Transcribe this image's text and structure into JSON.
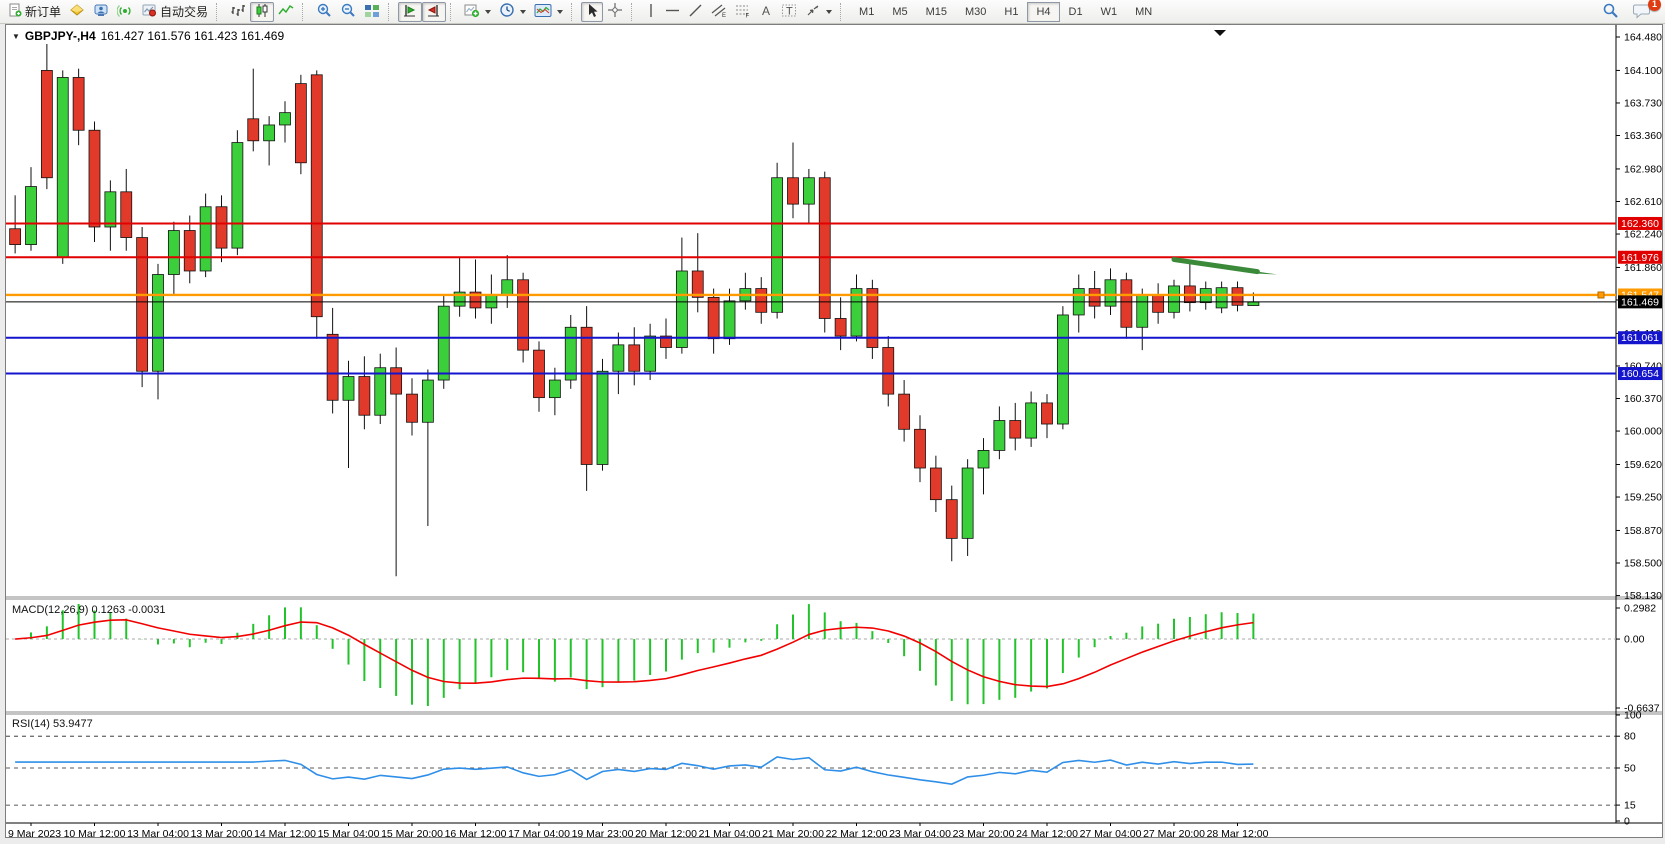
{
  "toolbar": {
    "new_order_label": "新订单",
    "autotrading_label": "自动交易",
    "timeframes": [
      "M1",
      "M5",
      "M15",
      "M30",
      "H1",
      "H4",
      "D1",
      "W1",
      "MN"
    ],
    "active_timeframe": "H4",
    "notification_count": "1"
  },
  "chart": {
    "title_symbol": "GBPJPY-,H4",
    "title_ohlc": "161.427 161.576 161.423 161.469",
    "price_axis_ticks": [
      "164.480",
      "164.100",
      "163.730",
      "163.360",
      "162.980",
      "162.610",
      "162.240",
      "161.860",
      "161.490",
      "161.110",
      "160.740",
      "160.370",
      "160.000",
      "159.620",
      "159.250",
      "158.870",
      "158.500",
      "158.130"
    ],
    "time_axis_labels": [
      "9 Mar 2023",
      "10 Mar 12:00",
      "13 Mar 04:00",
      "13 Mar 20:00",
      "14 Mar 12:00",
      "15 Mar 04:00",
      "15 Mar 20:00",
      "16 Mar 12:00",
      "17 Mar 04:00",
      "19 Mar 23:00",
      "20 Mar 12:00",
      "21 Mar 04:00",
      "21 Mar 20:00",
      "22 Mar 12:00",
      "23 Mar 04:00",
      "23 Mar 20:00",
      "24 Mar 12:00",
      "27 Mar 04:00",
      "27 Mar 20:00",
      "28 Mar 12:00"
    ],
    "level_labels": [
      {
        "text": "162.360",
        "price": 162.36,
        "color": "#e00000",
        "line_width": 2
      },
      {
        "text": "161.976",
        "price": 161.976,
        "color": "#e00000",
        "line_width": 2
      },
      {
        "text": "161.547",
        "price": 161.547,
        "color": "#ff9a00",
        "line_width": 2.4
      },
      {
        "text": "161.469",
        "price": 161.469,
        "color": "#000000",
        "line_width": 1
      },
      {
        "text": "161.061",
        "price": 161.061,
        "color": "#1414cc",
        "line_width": 2
      },
      {
        "text": "160.654",
        "price": 160.654,
        "color": "#1414cc",
        "line_width": 2
      }
    ]
  },
  "macd_panel": {
    "label": "MACD(12,26,9)",
    "values": "0.1263 -0.0031",
    "axis_max": "0.2982",
    "axis_zero": "0.00",
    "axis_min": "-0.6637",
    "histogram_color": "#22c32a",
    "signal_color": "#f20000"
  },
  "rsi_panel": {
    "label": "RSI(14)",
    "value": "53.9477",
    "axis_ticks": [
      "100",
      "80",
      "50",
      "15",
      "0"
    ],
    "levels": [
      80,
      50,
      15
    ],
    "line_color": "#2f8fe8"
  },
  "chart_data": {
    "type": "candlestick",
    "symbol": "GBPJPY-",
    "timeframe": "H4",
    "title": "GBPJPY- H4 candlestick chart with MACD and RSI",
    "ylim": [
      158.13,
      164.48
    ],
    "up_color": "#3ccf3c",
    "down_color": "#e23a2a",
    "candles": [
      [
        162.3,
        162.68,
        162.02,
        162.12
      ],
      [
        162.12,
        163.0,
        162.05,
        162.78
      ],
      [
        164.1,
        164.4,
        162.75,
        162.88
      ],
      [
        161.98,
        164.1,
        161.9,
        164.02
      ],
      [
        164.02,
        164.12,
        163.25,
        163.42
      ],
      [
        163.42,
        163.52,
        162.15,
        162.32
      ],
      [
        162.32,
        162.85,
        162.05,
        162.72
      ],
      [
        162.72,
        162.98,
        162.05,
        162.2
      ],
      [
        162.2,
        162.32,
        160.5,
        160.68
      ],
      [
        160.68,
        161.9,
        160.36,
        161.78
      ],
      [
        161.78,
        162.38,
        161.55,
        162.28
      ],
      [
        162.28,
        162.45,
        161.68,
        161.82
      ],
      [
        161.82,
        162.7,
        161.75,
        162.55
      ],
      [
        162.55,
        162.68,
        161.92,
        162.08
      ],
      [
        162.08,
        163.42,
        162.0,
        163.28
      ],
      [
        163.55,
        164.12,
        163.18,
        163.3
      ],
      [
        163.3,
        163.58,
        163.02,
        163.48
      ],
      [
        163.48,
        163.75,
        163.28,
        163.62
      ],
      [
        163.95,
        164.05,
        162.92,
        163.05
      ],
      [
        164.05,
        164.1,
        161.05,
        161.3
      ],
      [
        161.1,
        161.4,
        160.2,
        160.35
      ],
      [
        160.35,
        160.8,
        159.58,
        160.62
      ],
      [
        160.62,
        160.85,
        160.02,
        160.18
      ],
      [
        160.18,
        160.88,
        160.08,
        160.72
      ],
      [
        160.72,
        160.95,
        158.35,
        160.42
      ],
      [
        160.42,
        160.6,
        159.95,
        160.1
      ],
      [
        160.1,
        160.7,
        158.92,
        160.58
      ],
      [
        160.58,
        161.55,
        160.48,
        161.42
      ],
      [
        161.42,
        161.98,
        161.3,
        161.58
      ],
      [
        161.58,
        161.95,
        161.28,
        161.4
      ],
      [
        161.4,
        161.78,
        161.22,
        161.55
      ],
      [
        161.55,
        162.0,
        161.4,
        161.72
      ],
      [
        161.72,
        161.8,
        160.78,
        160.92
      ],
      [
        160.92,
        161.02,
        160.22,
        160.38
      ],
      [
        160.38,
        160.72,
        160.18,
        160.58
      ],
      [
        160.58,
        161.32,
        160.48,
        161.18
      ],
      [
        161.18,
        161.42,
        159.32,
        159.62
      ],
      [
        159.62,
        160.82,
        159.55,
        160.68
      ],
      [
        160.68,
        161.12,
        160.42,
        160.98
      ],
      [
        160.98,
        161.18,
        160.52,
        160.68
      ],
      [
        160.68,
        161.22,
        160.58,
        161.08
      ],
      [
        161.08,
        161.28,
        160.82,
        160.95
      ],
      [
        160.95,
        162.2,
        160.88,
        161.82
      ],
      [
        161.82,
        162.25,
        161.35,
        161.52
      ],
      [
        161.52,
        161.62,
        160.88,
        161.05
      ],
      [
        161.05,
        161.62,
        160.98,
        161.48
      ],
      [
        161.48,
        161.8,
        161.38,
        161.62
      ],
      [
        161.62,
        161.75,
        161.22,
        161.35
      ],
      [
        161.35,
        163.05,
        161.28,
        162.88
      ],
      [
        162.88,
        163.28,
        162.42,
        162.58
      ],
      [
        162.58,
        162.98,
        162.35,
        162.88
      ],
      [
        162.88,
        162.95,
        161.12,
        161.28
      ],
      [
        161.28,
        161.52,
        160.92,
        161.08
      ],
      [
        161.08,
        161.78,
        161.02,
        161.62
      ],
      [
        161.62,
        161.72,
        160.82,
        160.95
      ],
      [
        160.95,
        161.08,
        160.28,
        160.42
      ],
      [
        160.42,
        160.58,
        159.88,
        160.02
      ],
      [
        160.02,
        160.18,
        159.42,
        159.58
      ],
      [
        159.58,
        159.72,
        159.08,
        159.22
      ],
      [
        159.22,
        159.38,
        158.52,
        158.78
      ],
      [
        158.78,
        159.68,
        158.58,
        159.58
      ],
      [
        159.58,
        159.92,
        159.28,
        159.78
      ],
      [
        159.78,
        160.28,
        159.68,
        160.12
      ],
      [
        160.12,
        160.32,
        159.78,
        159.92
      ],
      [
        159.92,
        160.45,
        159.82,
        160.32
      ],
      [
        160.32,
        160.42,
        159.92,
        160.08
      ],
      [
        160.08,
        161.42,
        160.02,
        161.32
      ],
      [
        161.32,
        161.78,
        161.12,
        161.62
      ],
      [
        161.62,
        161.82,
        161.28,
        161.42
      ],
      [
        161.42,
        161.85,
        161.32,
        161.72
      ],
      [
        161.72,
        161.8,
        161.05,
        161.18
      ],
      [
        161.18,
        161.62,
        160.92,
        161.55
      ],
      [
        161.55,
        161.68,
        161.22,
        161.35
      ],
      [
        161.35,
        161.72,
        161.28,
        161.65
      ],
      [
        161.65,
        161.95,
        161.36,
        161.46
      ],
      [
        161.46,
        161.7,
        161.38,
        161.62
      ],
      [
        161.4,
        161.7,
        161.34,
        161.63
      ],
      [
        161.63,
        161.7,
        161.36,
        161.43
      ],
      [
        161.427,
        161.576,
        161.423,
        161.469
      ]
    ],
    "horizontal_lines": [
      {
        "price": 162.36,
        "color": "red"
      },
      {
        "price": 161.976,
        "color": "red"
      },
      {
        "price": 161.547,
        "color": "orange"
      },
      {
        "price": 161.469,
        "color": "black-bid"
      },
      {
        "price": 161.061,
        "color": "blue"
      },
      {
        "price": 160.654,
        "color": "blue"
      }
    ],
    "annotation_arrow": {
      "color": "#3a8a3a",
      "from": {
        "bar": 73,
        "price": 161.95
      },
      "to": {
        "bar": 79.5,
        "price": 161.78
      }
    },
    "indicators": [
      {
        "name": "MACD",
        "fast": 12,
        "slow": 26,
        "signal": 9,
        "display_values": "0.1263 -0.0031",
        "axis": [
          0.2982,
          0,
          -0.6637
        ]
      },
      {
        "name": "RSI",
        "period": 14,
        "display_value": "53.9477",
        "levels": [
          80,
          50,
          15
        ],
        "range": [
          0,
          100
        ]
      }
    ]
  }
}
